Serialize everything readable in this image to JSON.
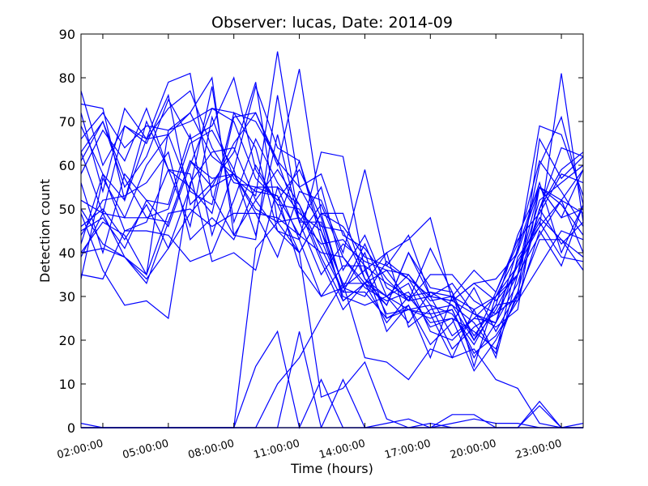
{
  "chart_data": {
    "type": "line",
    "title": "Observer: lucas, Date: 2014-09",
    "xlabel": "Time (hours)",
    "ylabel": "Detection count",
    "x_ticks": [
      "02:00:00",
      "05:00:00",
      "08:00:00",
      "11:00:00",
      "14:00:00",
      "17:00:00",
      "20:00:00",
      "23:00:00"
    ],
    "x": [
      "01:00",
      "02:00",
      "03:00",
      "04:00",
      "05:00",
      "06:00",
      "07:00",
      "08:00",
      "09:00",
      "10:00",
      "11:00",
      "12:00",
      "13:00",
      "14:00",
      "15:00",
      "16:00",
      "17:00",
      "18:00",
      "19:00",
      "20:00",
      "21:00",
      "22:00",
      "23:00",
      "24:00"
    ],
    "ylim": [
      0,
      90
    ],
    "yticks": [
      0,
      10,
      20,
      30,
      40,
      50,
      60,
      70,
      80,
      90
    ],
    "grid": false,
    "color": "#0000ff",
    "series": [
      {
        "values": [
          77,
          60,
          69,
          66,
          67,
          72,
          62,
          58,
          50,
          47,
          48,
          42,
          43,
          37,
          33,
          30,
          31,
          30,
          27,
          30,
          35,
          52,
          56,
          60
        ]
      },
      {
        "values": [
          74,
          73,
          52,
          66,
          73,
          77,
          64,
          56,
          55,
          53,
          44,
          40,
          39,
          32,
          29,
          31,
          23,
          25,
          22,
          18,
          31,
          50,
          64,
          62
        ]
      },
      {
        "values": [
          63,
          70,
          55,
          62,
          75,
          66,
          69,
          80,
          59,
          51,
          40,
          49,
          32,
          36,
          26,
          27,
          26,
          16,
          27,
          16,
          35,
          60,
          71,
          51
        ]
      },
      {
        "values": [
          66,
          72,
          64,
          69,
          68,
          70,
          73,
          72,
          70,
          61,
          55,
          46,
          45,
          34,
          30,
          24,
          31,
          28,
          24,
          17,
          39,
          46,
          81,
          47
        ]
      },
      {
        "values": [
          35,
          34,
          45,
          45,
          44,
          38,
          40,
          52,
          66,
          56,
          49,
          45,
          30,
          28,
          30,
          27,
          28,
          26,
          19,
          28,
          44,
          55,
          52,
          59
        ]
      },
      {
        "values": [
          52,
          49,
          48,
          48,
          47,
          61,
          57,
          58,
          49,
          48,
          44,
          51,
          39,
          33,
          36,
          29,
          30,
          29,
          26,
          23,
          27,
          55,
          48,
          50
        ]
      },
      {
        "values": [
          49,
          36,
          28,
          29,
          25,
          56,
          63,
          64,
          52,
          45,
          43,
          30,
          32,
          42,
          30,
          33,
          22,
          20,
          25,
          30,
          37,
          46,
          52,
          40
        ]
      },
      {
        "values": [
          39,
          49,
          39,
          34,
          41,
          49,
          55,
          58,
          54,
          53,
          37,
          30,
          37,
          37,
          22,
          28,
          16,
          30,
          21,
          28,
          29,
          37,
          45,
          43
        ]
      },
      {
        "values": [
          69,
          58,
          45,
          47,
          59,
          55,
          49,
          71,
          72,
          61,
          47,
          35,
          42,
          38,
          36,
          35,
          28,
          18,
          23,
          26,
          35,
          44,
          52,
          49
        ]
      },
      {
        "values": [
          45,
          48,
          41,
          52,
          51,
          67,
          44,
          59,
          44,
          67,
          47,
          47,
          29,
          33,
          28,
          40,
          32,
          31,
          14,
          30,
          40,
          55,
          51,
          44
        ]
      },
      {
        "values": [
          56,
          40,
          58,
          52,
          46,
          60,
          73,
          70,
          57,
          52,
          59,
          48,
          32,
          30,
          38,
          34,
          30,
          21,
          25,
          24,
          33,
          50,
          42,
          47
        ]
      },
      {
        "values": [
          61,
          70,
          57,
          48,
          50,
          65,
          68,
          59,
          78,
          64,
          61,
          45,
          33,
          33,
          40,
          23,
          27,
          28,
          20,
          31,
          42,
          61,
          54,
          46
        ]
      },
      {
        "values": [
          46,
          50,
          43,
          51,
          41,
          55,
          78,
          47,
          60,
          51,
          50,
          38,
          27,
          33,
          24,
          30,
          24,
          25,
          13,
          20,
          30,
          66,
          57,
          62
        ]
      },
      {
        "values": [
          44,
          52,
          53,
          56,
          63,
          43,
          48,
          43,
          55,
          55,
          51,
          41,
          31,
          31,
          25,
          28,
          19,
          24,
          32,
          22,
          31,
          50,
          59,
          63
        ]
      },
      {
        "values": [
          72,
          54,
          73,
          66,
          79,
          81,
          53,
          44,
          52,
          59,
          51,
          39,
          29,
          33,
          30,
          35,
          29,
          30,
          36,
          31,
          43,
          49,
          58,
          56
        ]
      },
      {
        "values": [
          63,
          49,
          69,
          65,
          76,
          51,
          56,
          63,
          79,
          47,
          61,
          43,
          31,
          40,
          25,
          27,
          25,
          27,
          16,
          24,
          38,
          47,
          39,
          38
        ]
      },
      {
        "values": [
          40,
          47,
          44,
          35,
          68,
          72,
          80,
          44,
          43,
          76,
          47,
          55,
          36,
          44,
          32,
          29,
          35,
          35,
          29,
          26,
          30,
          43,
          43,
          39
        ]
      },
      {
        "values": [
          42,
          58,
          52,
          70,
          59,
          46,
          71,
          57,
          53,
          86,
          55,
          58,
          44,
          41,
          34,
          29,
          41,
          31,
          20,
          27,
          37,
          48,
          43,
          36
        ]
      },
      {
        "values": [
          50,
          42,
          39,
          33,
          47,
          61,
          55,
          65,
          72,
          60,
          82,
          49,
          46,
          39,
          37,
          44,
          30,
          33,
          26,
          24,
          41,
          56,
          40,
          51
        ]
      },
      {
        "values": [
          58,
          68,
          61,
          73,
          59,
          58,
          38,
          40,
          36,
          55,
          43,
          63,
          62,
          36,
          40,
          43,
          48,
          29,
          33,
          34,
          40,
          69,
          67,
          53
        ]
      },
      {
        "values": [
          40,
          41,
          39,
          35,
          49,
          50,
          46,
          49,
          49,
          39,
          54,
          52,
          40,
          59,
          37,
          34,
          26,
          27,
          17,
          21,
          29,
          45,
          37,
          51
        ]
      },
      {
        "values": [
          34,
          57,
          48,
          60,
          67,
          54,
          51,
          72,
          64,
          45,
          40,
          49,
          49,
          34,
          28,
          40,
          30,
          29,
          33,
          29,
          35,
          55,
          48,
          59
        ]
      },
      {
        "values": [
          1,
          0,
          0,
          0,
          0,
          0,
          0,
          0,
          0,
          0,
          0,
          0,
          0,
          0,
          1,
          2,
          0,
          1,
          2,
          1,
          1,
          0,
          0,
          1
        ]
      },
      {
        "values": [
          0,
          0,
          0,
          0,
          0,
          0,
          0,
          0,
          14,
          22,
          0,
          11,
          0,
          0,
          0,
          0,
          0,
          3,
          3,
          0,
          0,
          0,
          0,
          0
        ]
      },
      {
        "values": [
          0,
          0,
          0,
          0,
          0,
          0,
          0,
          0,
          0,
          0,
          22,
          0,
          0,
          0,
          0,
          0,
          0,
          0,
          0,
          0,
          0,
          5,
          0,
          0
        ]
      },
      {
        "values": [
          0,
          0,
          0,
          0,
          0,
          0,
          0,
          0,
          0,
          10,
          16,
          25,
          33,
          16,
          15,
          11,
          18,
          16,
          18,
          11,
          9,
          1,
          0,
          0
        ]
      },
      {
        "values": [
          0,
          0,
          0,
          0,
          0,
          0,
          0,
          0,
          41,
          47,
          40,
          7,
          9,
          15,
          2,
          0,
          1,
          0,
          0,
          0,
          0,
          0,
          0,
          0
        ]
      },
      {
        "values": [
          0,
          0,
          0,
          0,
          0,
          0,
          0,
          0,
          0,
          0,
          0,
          0,
          11,
          0,
          0,
          0,
          0,
          0,
          0,
          0,
          0,
          6,
          0,
          0
        ]
      }
    ]
  }
}
